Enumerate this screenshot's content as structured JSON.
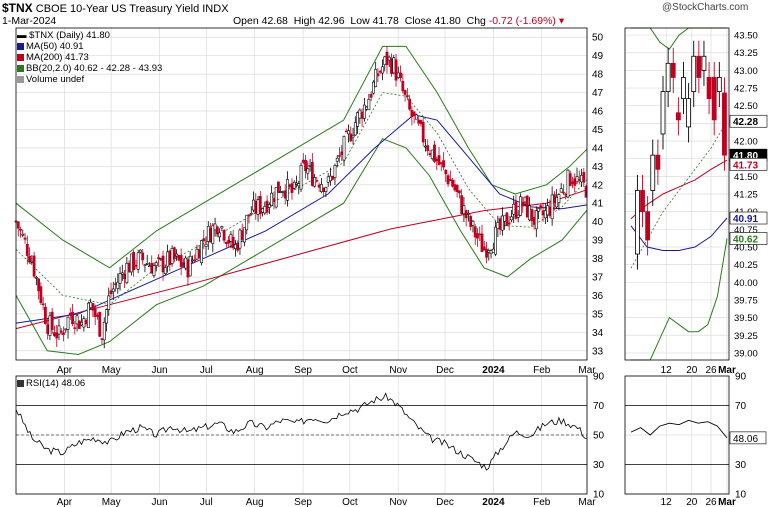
{
  "header": {
    "symbol": "$TNX",
    "name": "CBOE 10-Year US Treasury Yield INDX",
    "date": "1-Mar-2024",
    "brand": "@StockCharts.com",
    "open_label": "Open",
    "open": "42.68",
    "high_label": "High",
    "high": "42.96",
    "low_label": "Low",
    "low": "41.78",
    "close_label": "Close",
    "close": "41.80",
    "chg_label": "Chg",
    "chg": "-0.72 (-1.69%)"
  },
  "legend": {
    "price": "$TNX (Daily) 41.80",
    "ma50": "MA(50) 40.91",
    "ma200": "MA(200) 41.73",
    "bb": "BB(20,2.0) 40.62 - 42.28 - 43.93",
    "volume": "Volume undef",
    "rsi": "RSI(14) 48.06"
  },
  "colors": {
    "up": "#000000",
    "down": "#c00020",
    "ma50": "#1a1a99",
    "ma200": "#c00020",
    "bb": "#2a7a1a",
    "bb_mid": "#2a7a1a",
    "rsi": "#000000",
    "grid": "#dcdcdc"
  },
  "chart_data": [
    {
      "type": "line",
      "subtype": "candlestick",
      "panel": "main",
      "ylim": [
        32.5,
        50.5
      ],
      "yticks": [
        "50",
        "49",
        "48",
        "47",
        "46",
        "45",
        "44",
        "43",
        "42",
        "41",
        "40",
        "39",
        "38",
        "37",
        "36",
        "35",
        "34",
        "33"
      ],
      "xticks": [
        "Apr",
        "May",
        "Jun",
        "Jul",
        "Aug",
        "Sep",
        "Oct",
        "Nov",
        "Dec",
        "2024",
        "Feb",
        "Mar"
      ],
      "xrange": "2023-03-01 to 2024-03-01",
      "series": [
        {
          "name": "$TNX (Daily)",
          "last": 41.8
        },
        {
          "name": "MA(50)",
          "last": 40.91
        },
        {
          "name": "MA(200)",
          "last": 41.73
        },
        {
          "name": "BB(20,2.0)",
          "last": [
            40.62,
            42.28,
            43.93
          ]
        }
      ],
      "close_path": [
        [
          0,
          40.0
        ],
        [
          10,
          38.0
        ],
        [
          20,
          34.5
        ],
        [
          28,
          33.8
        ],
        [
          35,
          35.0
        ],
        [
          42,
          34.5
        ],
        [
          48,
          35.5
        ],
        [
          55,
          34.0
        ],
        [
          60,
          36.0
        ],
        [
          70,
          37.5
        ],
        [
          80,
          38.0
        ],
        [
          90,
          37.5
        ],
        [
          100,
          38.0
        ],
        [
          110,
          37.5
        ],
        [
          120,
          39.0
        ],
        [
          130,
          40.0
        ],
        [
          140,
          38.5
        ],
        [
          150,
          40.5
        ],
        [
          160,
          41.0
        ],
        [
          170,
          42.0
        ],
        [
          178,
          41.5
        ],
        [
          185,
          43.0
        ],
        [
          190,
          42.5
        ],
        [
          200,
          42.0
        ],
        [
          210,
          44.0
        ],
        [
          218,
          45.5
        ],
        [
          225,
          46.5
        ],
        [
          232,
          48.0
        ],
        [
          238,
          48.8
        ],
        [
          242,
          48.5
        ],
        [
          248,
          47.0
        ],
        [
          252,
          46.0
        ],
        [
          258,
          45.0
        ],
        [
          265,
          44.0
        ],
        [
          272,
          43.0
        ],
        [
          280,
          42.0
        ],
        [
          290,
          40.0
        ],
        [
          300,
          38.5
        ],
        [
          310,
          39.5
        ],
        [
          318,
          40.5
        ],
        [
          325,
          41.0
        ],
        [
          333,
          40.0
        ],
        [
          340,
          40.5
        ],
        [
          348,
          41.5
        ],
        [
          356,
          42.5
        ],
        [
          362,
          42.0
        ],
        [
          366,
          41.8
        ]
      ],
      "ma50_path": [
        [
          0,
          34.5
        ],
        [
          40,
          35.0
        ],
        [
          80,
          36.5
        ],
        [
          120,
          38.0
        ],
        [
          160,
          39.5
        ],
        [
          200,
          41.5
        ],
        [
          230,
          44.0
        ],
        [
          255,
          45.8
        ],
        [
          270,
          45.5
        ],
        [
          290,
          43.5
        ],
        [
          310,
          41.5
        ],
        [
          330,
          40.8
        ],
        [
          350,
          40.7
        ],
        [
          366,
          40.91
        ]
      ],
      "ma200_path": [
        [
          0,
          34.2
        ],
        [
          60,
          35.5
        ],
        [
          120,
          36.8
        ],
        [
          180,
          38.2
        ],
        [
          240,
          39.6
        ],
        [
          300,
          40.6
        ],
        [
          340,
          41.0
        ],
        [
          366,
          41.73
        ]
      ],
      "bb_upper_path": [
        [
          0,
          41.0
        ],
        [
          30,
          39.0
        ],
        [
          60,
          37.5
        ],
        [
          90,
          39.5
        ],
        [
          120,
          41.0
        ],
        [
          150,
          42.5
        ],
        [
          180,
          44.0
        ],
        [
          210,
          45.5
        ],
        [
          235,
          49.5
        ],
        [
          250,
          49.5
        ],
        [
          270,
          47.0
        ],
        [
          290,
          44.0
        ],
        [
          305,
          42.0
        ],
        [
          320,
          41.5
        ],
        [
          340,
          42.0
        ],
        [
          355,
          43.0
        ],
        [
          366,
          43.93
        ]
      ],
      "bb_lower_path": [
        [
          0,
          36.0
        ],
        [
          20,
          33.0
        ],
        [
          40,
          32.8
        ],
        [
          60,
          33.5
        ],
        [
          90,
          35.5
        ],
        [
          120,
          36.5
        ],
        [
          150,
          38.0
        ],
        [
          180,
          39.5
        ],
        [
          210,
          41.0
        ],
        [
          235,
          44.5
        ],
        [
          250,
          44.0
        ],
        [
          265,
          42.5
        ],
        [
          285,
          39.5
        ],
        [
          300,
          37.5
        ],
        [
          315,
          37.0
        ],
        [
          330,
          38.0
        ],
        [
          350,
          39.0
        ],
        [
          366,
          40.62
        ]
      ],
      "bb_mid_path": [
        [
          0,
          38.5
        ],
        [
          30,
          36.0
        ],
        [
          60,
          35.5
        ],
        [
          90,
          37.5
        ],
        [
          120,
          38.8
        ],
        [
          150,
          40.3
        ],
        [
          180,
          41.8
        ],
        [
          210,
          43.2
        ],
        [
          235,
          47.0
        ],
        [
          250,
          46.8
        ],
        [
          270,
          44.8
        ],
        [
          290,
          41.8
        ],
        [
          310,
          39.8
        ],
        [
          330,
          39.7
        ],
        [
          350,
          40.8
        ],
        [
          366,
          42.28
        ]
      ]
    },
    {
      "type": "line",
      "subtype": "candlestick",
      "panel": "zoom",
      "ylim": [
        38.9,
        43.6
      ],
      "yticks": [
        "43.50",
        "43.25",
        "43.00",
        "42.75",
        "42.50",
        "42.25",
        "42.00",
        "41.75",
        "41.50",
        "41.25",
        "41.00",
        "40.75",
        "40.50",
        "40.25",
        "40.00",
        "39.75",
        "39.50",
        "39.25",
        "39.00"
      ],
      "xticks": [
        "12",
        "20",
        "26",
        "Mar"
      ],
      "xrange": "2024-02-01 to 2024-03-01",
      "price_label": "41.80",
      "ma200_label": "41.73",
      "bb_labels": [
        "42.28",
        "40.62"
      ],
      "ma50_label": "40.91"
    },
    {
      "type": "line",
      "panel": "rsi",
      "title": "RSI(14) 48.06",
      "ylim": [
        10,
        90
      ],
      "yticks": [
        "90",
        "70",
        "50",
        "30",
        "10"
      ],
      "reference_lines": [
        70,
        30
      ],
      "last": 48.06,
      "path": [
        [
          0,
          68
        ],
        [
          10,
          48
        ],
        [
          20,
          40
        ],
        [
          30,
          38
        ],
        [
          40,
          45
        ],
        [
          50,
          48
        ],
        [
          60,
          45
        ],
        [
          70,
          52
        ],
        [
          80,
          55
        ],
        [
          90,
          50
        ],
        [
          100,
          56
        ],
        [
          110,
          52
        ],
        [
          120,
          55
        ],
        [
          130,
          58
        ],
        [
          140,
          52
        ],
        [
          150,
          58
        ],
        [
          160,
          55
        ],
        [
          170,
          60
        ],
        [
          180,
          58
        ],
        [
          190,
          62
        ],
        [
          200,
          60
        ],
        [
          210,
          66
        ],
        [
          220,
          68
        ],
        [
          230,
          74
        ],
        [
          238,
          76
        ],
        [
          245,
          70
        ],
        [
          255,
          58
        ],
        [
          265,
          48
        ],
        [
          275,
          44
        ],
        [
          285,
          38
        ],
        [
          295,
          32
        ],
        [
          302,
          28
        ],
        [
          310,
          40
        ],
        [
          320,
          52
        ],
        [
          330,
          50
        ],
        [
          340,
          58
        ],
        [
          350,
          60
        ],
        [
          360,
          55
        ],
        [
          366,
          48.06
        ]
      ]
    }
  ]
}
